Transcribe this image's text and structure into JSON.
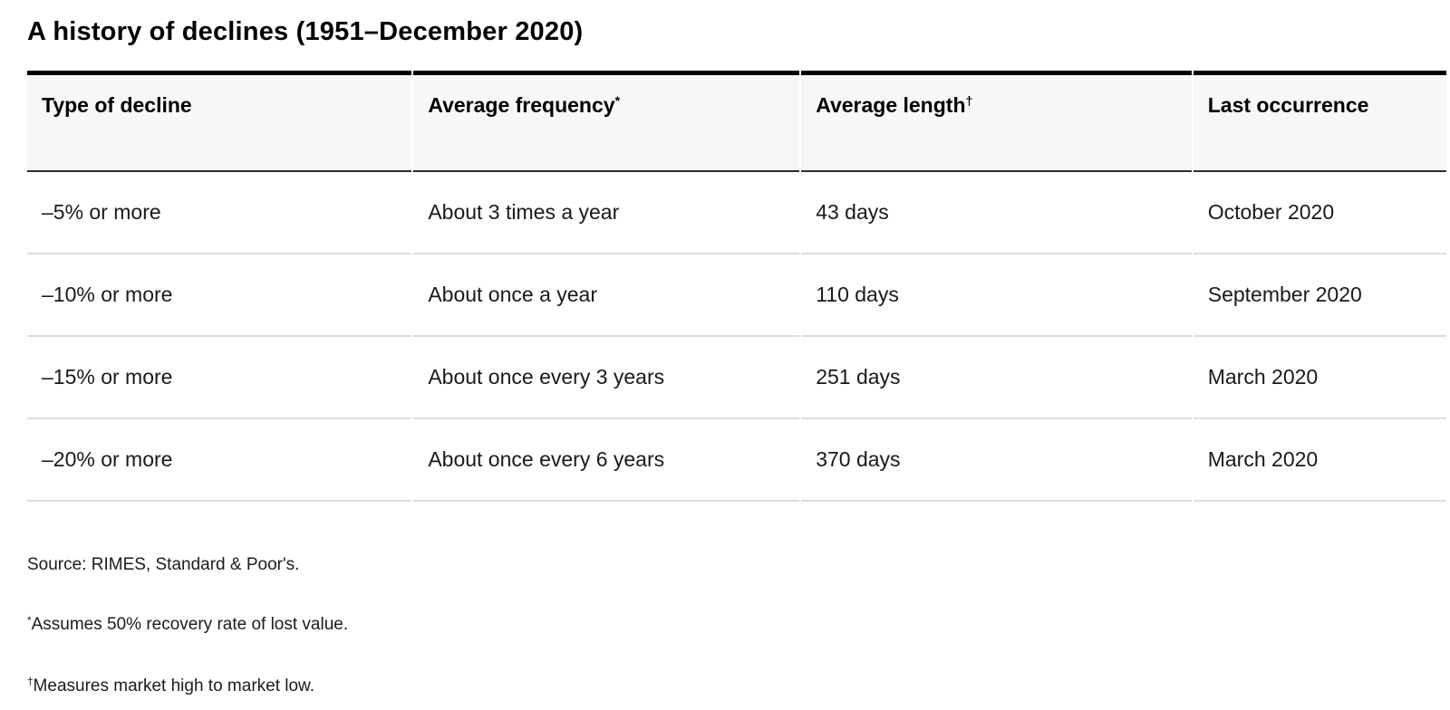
{
  "title": "A history of declines (1951–December 2020)",
  "table": {
    "columns": [
      {
        "label": "Type of decline",
        "superscript": ""
      },
      {
        "label": "Average frequency",
        "superscript": "*"
      },
      {
        "label": "Average length",
        "superscript": "†"
      },
      {
        "label": "Last occurrence",
        "superscript": ""
      }
    ],
    "rows": [
      [
        "–5% or more",
        "About 3 times a year",
        "43 days",
        "October 2020"
      ],
      [
        "–10% or more",
        "About once a year",
        "110 days",
        "September 2020"
      ],
      [
        "–15% or more",
        "About once every 3 years",
        "251 days",
        "March 2020"
      ],
      [
        "–20% or more",
        "About once every 6 years",
        "370 days",
        "March 2020"
      ]
    ]
  },
  "footnotes": {
    "source": "Source: RIMES, Standard & Poor's.",
    "asterisk": {
      "symbol": "*",
      "text": "Assumes 50% recovery rate of lost value."
    },
    "dagger": {
      "symbol": "†",
      "text": "Measures market high to market low."
    }
  },
  "colors": {
    "header_background": "#f7f7f7",
    "top_rule": "#000000",
    "header_underline": "#2f2f2f",
    "row_divider": "#dcdcdc",
    "text": "#1a1a1a"
  },
  "chart_data": {
    "type": "table",
    "title": "A history of declines (1951–December 2020)",
    "columns": [
      "Type of decline",
      "Average frequency*",
      "Average length†",
      "Last occurrence"
    ],
    "rows": [
      [
        "–5% or more",
        "About 3 times a year",
        "43 days",
        "October 2020"
      ],
      [
        "–10% or more",
        "About once a year",
        "110 days",
        "September 2020"
      ],
      [
        "–15% or more",
        "About once every 3 years",
        "251 days",
        "March 2020"
      ],
      [
        "–20% or more",
        "About once every 6 years",
        "370 days",
        "March 2020"
      ]
    ]
  }
}
